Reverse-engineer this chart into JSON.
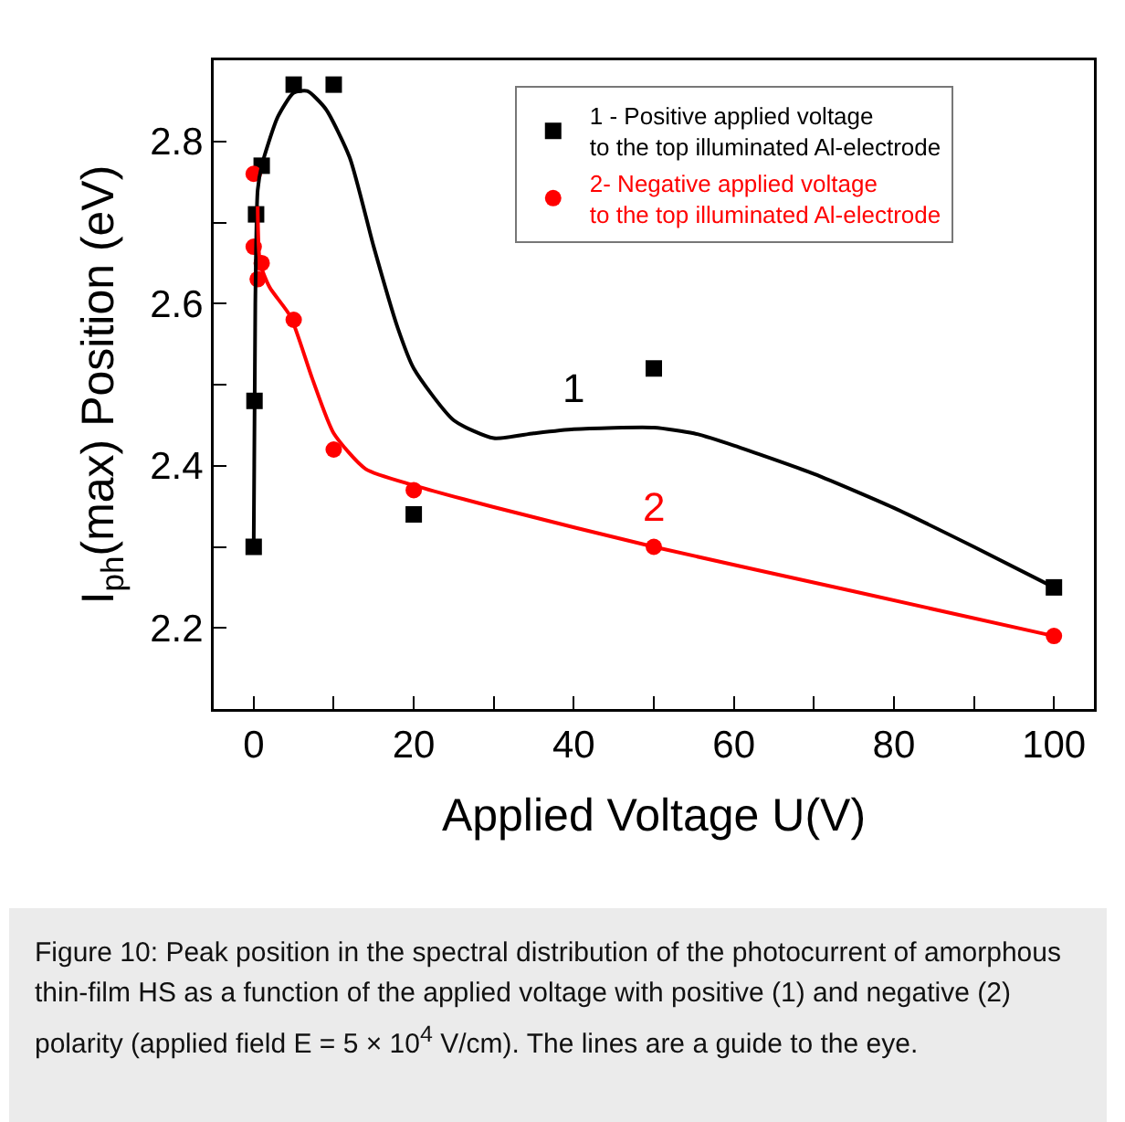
{
  "chart_data": {
    "type": "scatter",
    "xlabel": "Applied Voltage U(V)",
    "ylabel": "I$_{ph}$(max) Position (eV)",
    "xlim": [
      -5,
      105
    ],
    "xticks": [
      0,
      {
        "value": 10,
        "label": null
      },
      20,
      {
        "value": 30,
        "label": null
      },
      40,
      {
        "value": 50,
        "label": null
      },
      60,
      {
        "value": 70,
        "label": null
      },
      80,
      {
        "value": 90,
        "label": null
      },
      100
    ],
    "ylim": [
      2.1,
      2.9
    ],
    "yticks": [
      2.2,
      {
        "value": 2.3,
        "label": null
      },
      2.4,
      {
        "value": 2.5,
        "label": null
      },
      2.6,
      {
        "value": 2.7,
        "label": null
      },
      2.8
    ],
    "grid": false,
    "legend": "top right",
    "series": [
      {
        "name": "1 - Positive applied voltage\nto the top illuminated Al-electrode",
        "color": "#000000",
        "marker": "square",
        "x": [
          0,
          0.1,
          0.3,
          1,
          5,
          10,
          20,
          50,
          100
        ],
        "values": [
          2.3,
          2.48,
          2.71,
          2.77,
          2.87,
          2.87,
          2.34,
          2.52,
          2.25
        ]
      },
      {
        "name": "2- Negative applied voltage\nto the top illuminated Al-electrode",
        "color": "#ff0000",
        "marker": "circle",
        "x": [
          0,
          0,
          0.5,
          1,
          5,
          10,
          20,
          50,
          100
        ],
        "values": [
          2.76,
          2.67,
          2.63,
          2.65,
          2.58,
          2.42,
          2.37,
          2.3,
          2.19
        ]
      },
      {
        "type": "line",
        "color": "#000000",
        "marker": "none",
        "x": [
          0,
          0.2,
          0.5,
          1,
          3,
          5,
          6.7,
          9,
          12,
          15,
          18,
          20,
          25,
          30,
          35,
          40,
          50,
          55,
          60,
          70,
          80,
          90,
          100
        ],
        "values": [
          2.3,
          2.6,
          2.74,
          2.77,
          2.83,
          2.86,
          2.862,
          2.84,
          2.78,
          2.67,
          2.57,
          2.52,
          2.456,
          2.434,
          2.44,
          2.445,
          2.447,
          2.44,
          2.425,
          2.39,
          2.348,
          2.3,
          2.25
        ]
      },
      {
        "type": "line",
        "color": "#ff0000",
        "marker": "none",
        "x": [
          0.5,
          0.8,
          2,
          4.6,
          7.3,
          10,
          14,
          20,
          30,
          50,
          75,
          100
        ],
        "values": [
          2.72,
          2.65,
          2.62,
          2.584,
          2.508,
          2.44,
          2.396,
          2.376,
          2.349,
          2.3,
          2.245,
          2.19
        ]
      }
    ],
    "annotations": [
      "1",
      "2",
      "Figure 10: Peak position in the spectral distribution of the photocurrent of amorphous thin-film HS as a function of the applied voltage with positive (1) and negative (2) polarity (applied field E = 5 × 10$^{4}$ V/cm). The lines are a guide to the eye."
    ]
  }
}
